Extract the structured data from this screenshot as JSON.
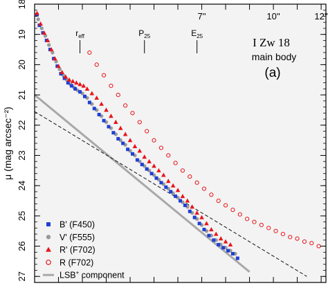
{
  "chart_data": {
    "type": "scatter",
    "title": "I Zw 18",
    "subtitle": "main body",
    "panel_label": "(a)",
    "ylabel": "μ (mag arcsec⁻²)",
    "ylim": [
      27.2,
      18
    ],
    "xlim": [
      0,
      12.2
    ],
    "y_ticks": [
      18,
      19,
      20,
      21,
      22,
      23,
      24,
      25,
      26,
      27
    ],
    "top_axis": {
      "ticks": [
        {
          "value": 7,
          "label": "7''"
        },
        {
          "value": 10,
          "label": "10''"
        },
        {
          "value": 12,
          "label": "12''"
        }
      ]
    },
    "markers": [
      {
        "label": "r",
        "sub": "eff",
        "x": 1.9
      },
      {
        "label": "P",
        "sub": "25",
        "x": 4.6
      },
      {
        "label": "E",
        "sub": "25",
        "x": 6.8
      }
    ],
    "colors": {
      "b_prime": "#1f3fd6",
      "v_prime": "#9a9a9a",
      "r_prime": "#e8141a",
      "r_open": "#e8141a",
      "lsb": "#a8a8a8",
      "background": "#f3f3f3"
    },
    "legend": {
      "position": "bottom-left",
      "entries": [
        {
          "label": "B' (F450)",
          "marker": "square"
        },
        {
          "label": "V' (F555)",
          "marker": "circle"
        },
        {
          "label": "R' (F702)",
          "marker": "triangle"
        },
        {
          "label": "R (F702)",
          "marker": "open-circle"
        },
        {
          "label": "LSB",
          "sup": "+",
          "after": " component",
          "marker": "line"
        }
      ]
    },
    "series": [
      {
        "name": "B' (F450)",
        "x": [
          0.1,
          0.2,
          0.35,
          0.5,
          0.65,
          0.8,
          0.95,
          1.1,
          1.25,
          1.4,
          1.55,
          1.7,
          1.9,
          2.1,
          2.3,
          2.5,
          2.7,
          2.9,
          3.1,
          3.3,
          3.5,
          3.7,
          3.9,
          4.1,
          4.3,
          4.5,
          4.7,
          4.9,
          5.1,
          5.3,
          5.5,
          5.7,
          5.9,
          6.1,
          6.3,
          6.5,
          6.7,
          6.9,
          7.1,
          7.3,
          7.5,
          7.7,
          7.9,
          8.1,
          8.3,
          8.5
        ],
        "y": [
          18.35,
          18.7,
          18.95,
          19.2,
          19.5,
          19.8,
          20.05,
          20.3,
          20.45,
          20.6,
          20.7,
          20.8,
          20.9,
          21.05,
          21.25,
          21.45,
          21.65,
          21.85,
          22.05,
          22.25,
          22.45,
          22.6,
          22.8,
          22.95,
          23.15,
          23.3,
          23.45,
          23.6,
          23.75,
          23.9,
          24.05,
          24.2,
          24.35,
          24.5,
          24.65,
          24.85,
          25.05,
          25.25,
          25.45,
          25.65,
          25.8,
          25.95,
          26.05,
          26.15,
          26.25,
          26.4
        ]
      },
      {
        "name": "V' (F555)",
        "x": [
          0.15,
          0.3,
          0.45,
          0.6,
          0.75,
          0.9,
          1.05,
          1.2,
          1.35,
          1.5,
          1.65,
          1.8,
          2.0,
          2.2,
          2.4,
          2.6,
          2.8,
          3.0,
          3.2,
          3.4,
          3.6,
          3.8,
          4.0,
          4.2,
          4.4,
          4.6,
          4.8,
          5.0,
          5.2,
          5.4,
          5.6,
          5.8,
          6.0,
          6.2,
          6.4,
          6.6,
          6.8,
          7.0,
          7.2,
          7.4,
          7.6,
          7.8,
          8.0,
          8.2,
          8.4
        ],
        "y": [
          18.5,
          18.8,
          19.05,
          19.35,
          19.6,
          19.9,
          20.15,
          20.35,
          20.5,
          20.65,
          20.75,
          20.85,
          20.95,
          21.1,
          21.3,
          21.5,
          21.7,
          21.9,
          22.1,
          22.3,
          22.5,
          22.65,
          22.85,
          23.0,
          23.2,
          23.35,
          23.5,
          23.65,
          23.8,
          23.95,
          24.1,
          24.25,
          24.4,
          24.55,
          24.7,
          24.9,
          25.1,
          25.3,
          25.5,
          25.65,
          25.8,
          25.95,
          26.05,
          26.15,
          26.25
        ]
      },
      {
        "name": "R' (F702)",
        "x": [
          0.1,
          0.25,
          0.4,
          0.55,
          0.7,
          0.85,
          1.0,
          1.15,
          1.3,
          1.45,
          1.6,
          1.75,
          1.9,
          2.05,
          2.2,
          2.4,
          2.6,
          2.8,
          3.0,
          3.2,
          3.4,
          3.6,
          3.8,
          4.0,
          4.2,
          4.4,
          4.6,
          4.8,
          5.0,
          5.2,
          5.4,
          5.6,
          5.8,
          6.0,
          6.2,
          6.4,
          6.6,
          6.8,
          7.0,
          7.2,
          7.4,
          7.6,
          7.8,
          8.0,
          8.2
        ],
        "y": [
          18.3,
          18.65,
          18.95,
          19.2,
          19.5,
          19.8,
          20.05,
          20.25,
          20.4,
          20.5,
          20.55,
          20.6,
          20.65,
          20.7,
          20.8,
          20.95,
          21.1,
          21.3,
          21.5,
          21.7,
          21.9,
          22.1,
          22.3,
          22.5,
          22.7,
          22.85,
          23.05,
          23.2,
          23.35,
          23.5,
          23.65,
          23.85,
          24.0,
          24.15,
          24.35,
          24.5,
          24.7,
          24.9,
          25.05,
          25.25,
          25.45,
          25.6,
          25.75,
          25.85,
          25.95
        ]
      },
      {
        "name": "R (F702)",
        "x": [
          2.3,
          2.6,
          2.9,
          3.2,
          3.5,
          3.8,
          4.1,
          4.4,
          4.7,
          5.0,
          5.3,
          5.6,
          5.9,
          6.2,
          6.5,
          6.8,
          7.1,
          7.4,
          7.7,
          8.0,
          8.3,
          8.6,
          8.9,
          9.2,
          9.5,
          9.8,
          10.1,
          10.4,
          10.7,
          11.0,
          11.3,
          11.6,
          11.9
        ],
        "y": [
          19.6,
          20.0,
          20.35,
          20.7,
          21.0,
          21.35,
          21.6,
          21.9,
          22.2,
          22.5,
          22.75,
          23.0,
          23.25,
          23.5,
          23.7,
          23.9,
          24.1,
          24.3,
          24.5,
          24.65,
          24.8,
          24.95,
          25.1,
          25.2,
          25.3,
          25.4,
          25.5,
          25.6,
          25.7,
          25.75,
          25.85,
          25.9,
          26.0
        ]
      },
      {
        "name": "LSB+ component",
        "type": "line",
        "x": [
          0,
          9
        ],
        "y": [
          21.0,
          26.85
        ]
      },
      {
        "name": "fit (dashed)",
        "type": "line",
        "x": [
          0,
          11.4
        ],
        "y": [
          21.55,
          27.0
        ]
      }
    ]
  }
}
